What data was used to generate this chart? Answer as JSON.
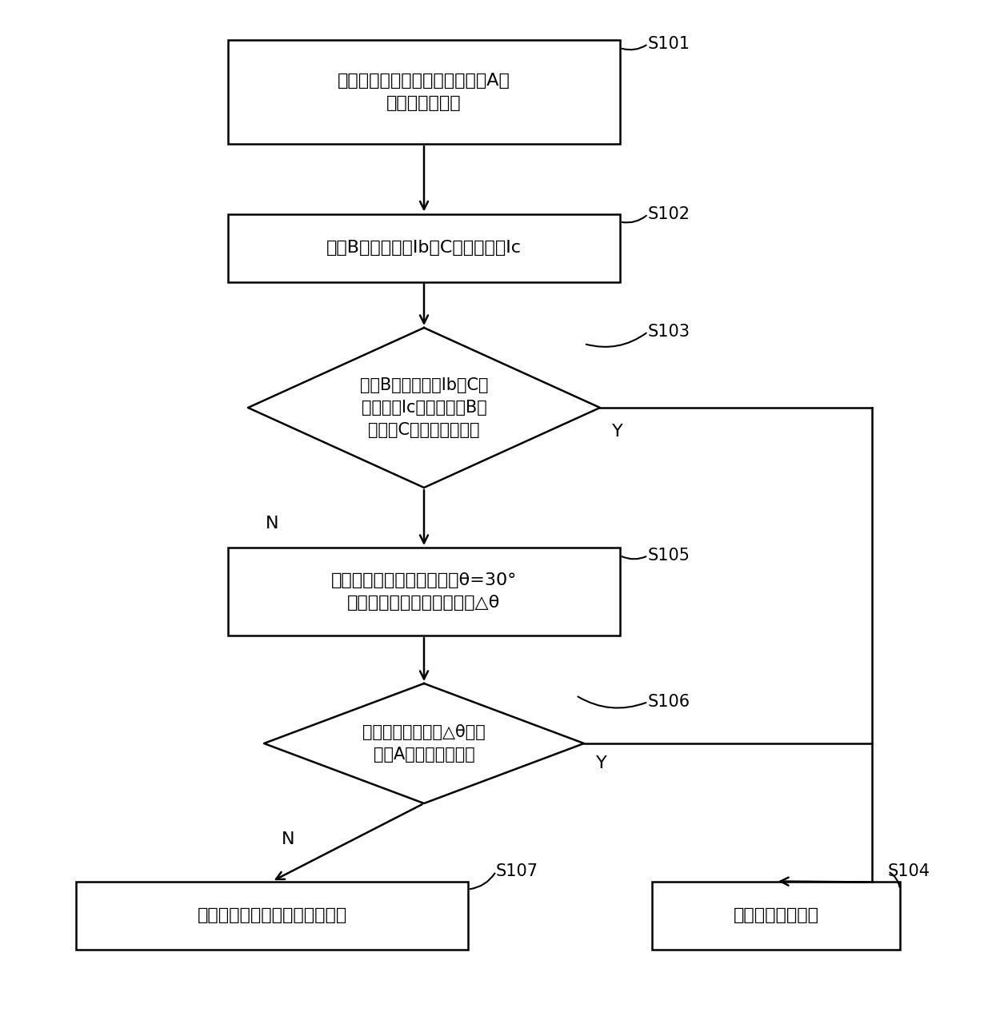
{
  "background_color": "#ffffff",
  "fig_width": 12.4,
  "fig_height": 12.86,
  "s101_label": "控制电机转子的直轴定位至电机A相\n绕组的轴中心处",
  "s102_label": "检测B相绕组电流Ib、C相绕组电流Ic",
  "s103_label": "通过B相绕组电流Ib和C相\n绕组电流Ic判断电机的B相\n绕组和C相绕组是否缺相",
  "s105_label": "控制电机旋转至转子位置角θ=30°\n处，并记录电机的旋转角度△θ",
  "s106_label": "根据电机旋转角度△θ判断\n电机A相绕组是否缺相",
  "s107_label": "电机无缺相故障，正常启动电机",
  "s104_label": "输出故障报警信号",
  "lw": 1.8,
  "arrow_mutation_scale": 18,
  "font_size_main": 16,
  "font_size_id": 15,
  "font_size_yn": 16
}
